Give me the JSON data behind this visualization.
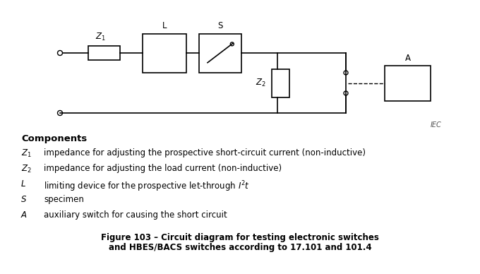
{
  "title_line1": "Figure 103 – Circuit diagram for testing electronic switches",
  "title_line2": "and HBES/BACS switches according to 17.101 and 101.4",
  "components_title": "Components",
  "components": [
    [
      "Z₁",
      "impedance for adjusting the prospective short-circuit current (non-inductive)"
    ],
    [
      "Z₂",
      "impedance for adjusting the load current (non-inductive)"
    ],
    [
      "L",
      "limiting device for the prospective let-through ℹ²t"
    ],
    [
      "S",
      "specimen"
    ],
    [
      "A",
      "auxiliary switch for causing the short circuit"
    ]
  ],
  "IEC_label": "IEC",
  "bg_color": "#ffffff",
  "line_color": "#000000",
  "text_color": "#000000"
}
